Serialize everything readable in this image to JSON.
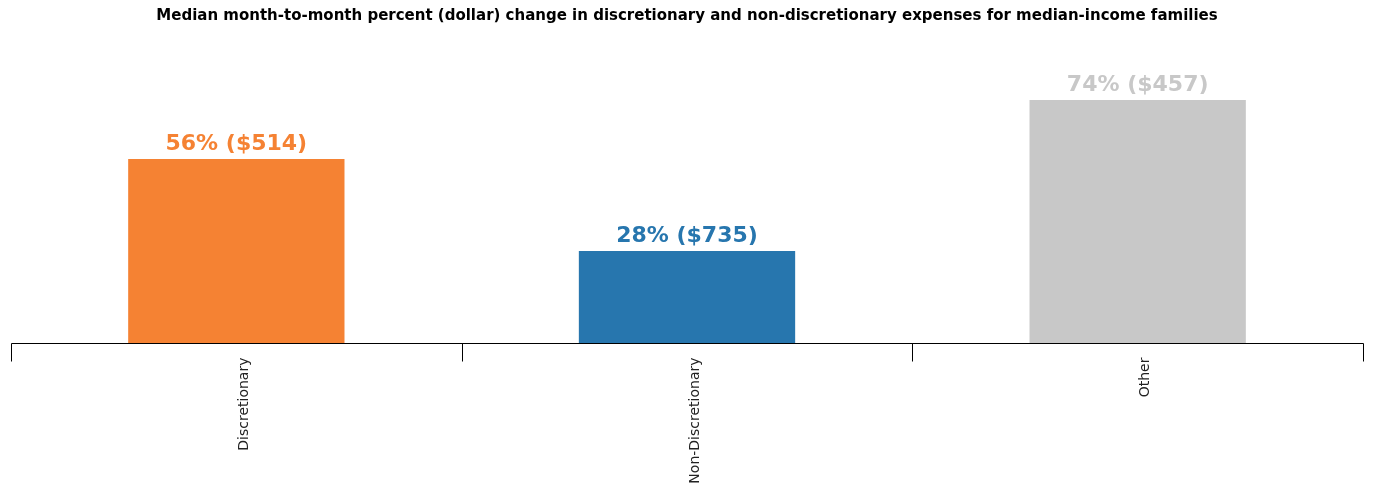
{
  "chart_data": {
    "type": "bar",
    "title": "Median month-to-month percent (dollar) change in discretionary and non-discretionary expenses for median-income families",
    "categories": [
      "Discretionary",
      "Non-Discretionary",
      "Other"
    ],
    "values": [
      56,
      28,
      74
    ],
    "colors": [
      "#f58233",
      "#2776ae",
      "#c8c8c8"
    ],
    "value_labels": [
      "56% ($514)",
      "28% ($735)",
      "74% ($457)"
    ]
  }
}
